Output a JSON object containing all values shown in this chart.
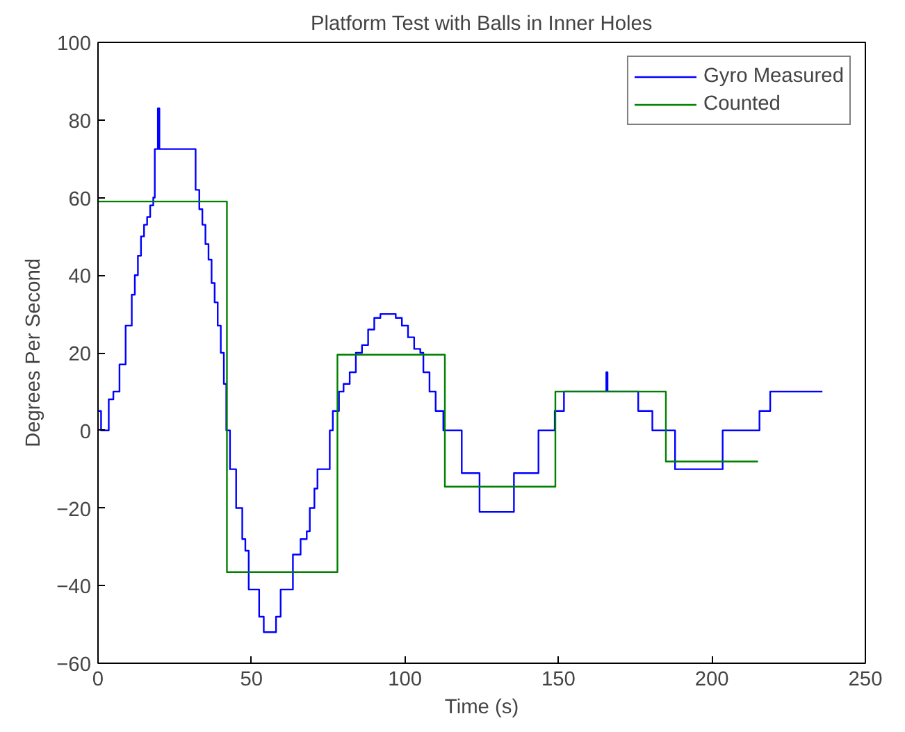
{
  "chart_data": {
    "type": "step",
    "title": "Platform Test with Balls in Inner Holes",
    "xlabel": "Time (s)",
    "ylabel": "Degrees Per Second",
    "xlim": [
      0,
      250
    ],
    "xticks": [
      0,
      50,
      100,
      150,
      200,
      250
    ],
    "ylim": [
      -60,
      100
    ],
    "yticks": [
      -60,
      -40,
      -20,
      0,
      20,
      40,
      60,
      80,
      100
    ],
    "grid": false,
    "legend": "top right",
    "series": [
      {
        "name": "Gyro Measured",
        "color": "#0000ff",
        "x": [
          0,
          1,
          3.5,
          5,
          7,
          9,
          11,
          12,
          13,
          14,
          15,
          16,
          17,
          18,
          18.5,
          19.5,
          20,
          31.8,
          33,
          34,
          35,
          36,
          37,
          38,
          39,
          40,
          41,
          41.8,
          43,
          45,
          47,
          48,
          49.1,
          52.5,
          54,
          58,
          59.5,
          63.5,
          66,
          68,
          69,
          70.5,
          71.5,
          75.5,
          76.5,
          78.5,
          80,
          82,
          84,
          86,
          88,
          90,
          92,
          97,
          99,
          101,
          103,
          105,
          106,
          108,
          110,
          112.5,
          118.5,
          124.3,
          135.5,
          143.5,
          148.8,
          151.8,
          165.6,
          166,
          176,
          180.6,
          188,
          203.5,
          215.5,
          219,
          236
        ],
        "values": [
          5,
          0,
          8,
          10,
          17,
          27,
          35,
          40,
          45,
          50,
          53,
          55,
          58,
          60,
          72.5,
          83,
          72.5,
          62,
          57,
          53,
          48,
          44,
          38,
          33,
          27,
          20,
          12,
          0,
          -10,
          -20,
          -28,
          -31,
          -41,
          -48,
          -52,
          -48,
          -41,
          -32,
          -28,
          -26,
          -20,
          -15,
          -10,
          0,
          5,
          10,
          12,
          15,
          20,
          22,
          26,
          29,
          30,
          29,
          27,
          24,
          21,
          20,
          15,
          10,
          5,
          0,
          -11,
          -21,
          -11,
          0,
          5,
          10,
          15,
          10,
          5,
          0,
          -10,
          0,
          5,
          10,
          10
        ]
      },
      {
        "name": "Counted",
        "color": "#008000",
        "x": [
          0,
          42,
          78,
          113,
          149,
          185,
          215
        ],
        "values": [
          59,
          -36.5,
          19.5,
          -14.5,
          10,
          -8,
          -8
        ]
      }
    ]
  }
}
